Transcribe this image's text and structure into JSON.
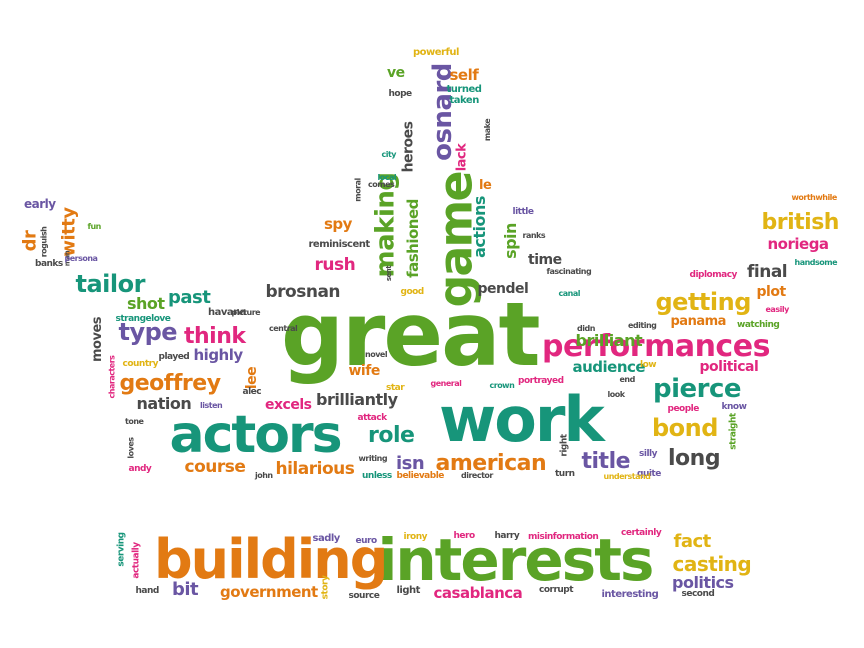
{
  "palette": {
    "green": "#5aa326",
    "teal": "#17957a",
    "pink": "#e1277f",
    "purple": "#6a56a3",
    "orange": "#e27a13",
    "yellow": "#e1b414",
    "gray": "#4a4a4a",
    "lightgreen": "#8cbc2d"
  },
  "words": [
    {
      "text": "great",
      "color": "green"
    },
    {
      "text": "work",
      "color": "teal"
    },
    {
      "text": "actors",
      "color": "teal"
    },
    {
      "text": "interests",
      "color": "green"
    },
    {
      "text": "building",
      "color": "orange"
    },
    {
      "text": "game",
      "color": "green"
    },
    {
      "text": "performances",
      "color": "pink"
    },
    {
      "text": "osnard",
      "color": "purple"
    },
    {
      "text": "making",
      "color": "green"
    },
    {
      "text": "pierce",
      "color": "teal"
    },
    {
      "text": "tailor",
      "color": "teal"
    },
    {
      "text": "geoffrey",
      "color": "orange"
    },
    {
      "text": "getting",
      "color": "yellow"
    },
    {
      "text": "think",
      "color": "pink"
    },
    {
      "text": "type",
      "color": "purple"
    },
    {
      "text": "american",
      "color": "orange"
    },
    {
      "text": "bond",
      "color": "yellow"
    },
    {
      "text": "role",
      "color": "teal"
    },
    {
      "text": "title",
      "color": "purple"
    },
    {
      "text": "long",
      "color": "gray"
    },
    {
      "text": "british",
      "color": "yellow"
    },
    {
      "text": "casting",
      "color": "yellow"
    },
    {
      "text": "fact",
      "color": "yellow"
    },
    {
      "text": "politics",
      "color": "purple"
    },
    {
      "text": "casablanca",
      "color": "pink"
    },
    {
      "text": "government",
      "color": "orange"
    },
    {
      "text": "bit",
      "color": "purple"
    },
    {
      "text": "course",
      "color": "orange"
    },
    {
      "text": "hilarious",
      "color": "orange"
    },
    {
      "text": "brilliantly",
      "color": "gray"
    },
    {
      "text": "nation",
      "color": "gray"
    },
    {
      "text": "excels",
      "color": "pink"
    },
    {
      "text": "brosnan",
      "color": "gray"
    },
    {
      "text": "past",
      "color": "teal"
    },
    {
      "text": "shot",
      "color": "green"
    },
    {
      "text": "highly",
      "color": "purple"
    },
    {
      "text": "wife",
      "color": "orange"
    },
    {
      "text": "lee",
      "color": "orange"
    },
    {
      "text": "isn",
      "color": "purple"
    },
    {
      "text": "audience",
      "color": "teal"
    },
    {
      "text": "brilliant",
      "color": "green"
    },
    {
      "text": "political",
      "color": "pink"
    },
    {
      "text": "panama",
      "color": "orange"
    },
    {
      "text": "final",
      "color": "gray"
    },
    {
      "text": "plot",
      "color": "orange"
    },
    {
      "text": "noriega",
      "color": "pink"
    },
    {
      "text": "spy",
      "color": "orange"
    },
    {
      "text": "rush",
      "color": "pink"
    },
    {
      "text": "fashioned",
      "color": "green"
    },
    {
      "text": "actions",
      "color": "teal"
    },
    {
      "text": "spin",
      "color": "green"
    },
    {
      "text": "pendel",
      "color": "gray"
    },
    {
      "text": "time",
      "color": "gray"
    },
    {
      "text": "heroes",
      "color": "gray"
    },
    {
      "text": "lack",
      "color": "pink"
    },
    {
      "text": "le",
      "color": "orange"
    },
    {
      "text": "self",
      "color": "orange"
    },
    {
      "text": "ve",
      "color": "green"
    },
    {
      "text": "dr",
      "color": "orange"
    },
    {
      "text": "witty",
      "color": "orange"
    },
    {
      "text": "moves",
      "color": "gray"
    },
    {
      "text": "powerful",
      "color": "yellow"
    },
    {
      "text": "hope",
      "color": "gray"
    },
    {
      "text": "turned",
      "color": "teal"
    },
    {
      "text": "taken",
      "color": "teal"
    },
    {
      "text": "make",
      "color": "gray"
    },
    {
      "text": "city",
      "color": "teal"
    },
    {
      "text": "local",
      "color": "teal"
    },
    {
      "text": "comes",
      "color": "gray"
    },
    {
      "text": "moral",
      "color": "gray"
    },
    {
      "text": "reminiscent",
      "color": "gray"
    },
    {
      "text": "sent",
      "color": "gray"
    },
    {
      "text": "little",
      "color": "purple"
    },
    {
      "text": "ranks",
      "color": "gray"
    },
    {
      "text": "fascinating",
      "color": "gray"
    },
    {
      "text": "worthwhile",
      "color": "orange"
    },
    {
      "text": "handsome",
      "color": "teal"
    },
    {
      "text": "diplomacy",
      "color": "pink"
    },
    {
      "text": "easily",
      "color": "pink"
    },
    {
      "text": "watching",
      "color": "green"
    },
    {
      "text": "early",
      "color": "purple"
    },
    {
      "text": "roguish",
      "color": "gray"
    },
    {
      "text": "man",
      "color": "gray"
    },
    {
      "text": "banks",
      "color": "gray"
    },
    {
      "text": "persona",
      "color": "purple"
    },
    {
      "text": "fun",
      "color": "green"
    },
    {
      "text": "havana",
      "color": "gray"
    },
    {
      "text": "central",
      "color": "gray"
    },
    {
      "text": "picture",
      "color": "gray"
    },
    {
      "text": "strangelove",
      "color": "teal"
    },
    {
      "text": "country",
      "color": "yellow"
    },
    {
      "text": "played",
      "color": "gray"
    },
    {
      "text": "characters",
      "color": "pink"
    },
    {
      "text": "alec",
      "color": "gray"
    },
    {
      "text": "listen",
      "color": "purple"
    },
    {
      "text": "tone",
      "color": "gray"
    },
    {
      "text": "loves",
      "color": "gray"
    },
    {
      "text": "andy",
      "color": "pink"
    },
    {
      "text": "john",
      "color": "gray"
    },
    {
      "text": "writing",
      "color": "gray"
    },
    {
      "text": "unless",
      "color": "teal"
    },
    {
      "text": "believable",
      "color": "orange"
    },
    {
      "text": "director",
      "color": "gray"
    },
    {
      "text": "novel",
      "color": "gray"
    },
    {
      "text": "star",
      "color": "yellow"
    },
    {
      "text": "general",
      "color": "pink"
    },
    {
      "text": "crown",
      "color": "teal"
    },
    {
      "text": "portrayed",
      "color": "pink"
    },
    {
      "text": "attack",
      "color": "pink"
    },
    {
      "text": "good",
      "color": "yellow"
    },
    {
      "text": "canal",
      "color": "teal"
    },
    {
      "text": "didn",
      "color": "gray"
    },
    {
      "text": "editing",
      "color": "gray"
    },
    {
      "text": "low",
      "color": "yellow"
    },
    {
      "text": "end",
      "color": "gray"
    },
    {
      "text": "look",
      "color": "gray"
    },
    {
      "text": "right",
      "color": "gray"
    },
    {
      "text": "turn",
      "color": "gray"
    },
    {
      "text": "silly",
      "color": "purple"
    },
    {
      "text": "quite",
      "color": "purple"
    },
    {
      "text": "understand",
      "color": "yellow"
    },
    {
      "text": "people",
      "color": "pink"
    },
    {
      "text": "know",
      "color": "purple"
    },
    {
      "text": "straight",
      "color": "green"
    },
    {
      "text": "serving",
      "color": "teal"
    },
    {
      "text": "actually",
      "color": "pink"
    },
    {
      "text": "hand",
      "color": "gray"
    },
    {
      "text": "sadly",
      "color": "purple"
    },
    {
      "text": "euro",
      "color": "purple"
    },
    {
      "text": "story",
      "color": "yellow"
    },
    {
      "text": "source",
      "color": "gray"
    },
    {
      "text": "light",
      "color": "gray"
    },
    {
      "text": "irony",
      "color": "yellow"
    },
    {
      "text": "hero",
      "color": "pink"
    },
    {
      "text": "harry",
      "color": "gray"
    },
    {
      "text": "misinformation",
      "color": "pink"
    },
    {
      "text": "certainly",
      "color": "pink"
    },
    {
      "text": "corrupt",
      "color": "gray"
    },
    {
      "text": "interesting",
      "color": "purple"
    },
    {
      "text": "second",
      "color": "gray"
    }
  ]
}
